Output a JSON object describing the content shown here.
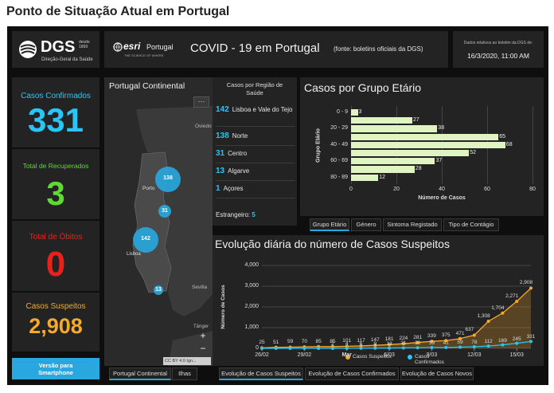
{
  "page_title": "Ponto de Situação Atual em Portugal",
  "header": {
    "dgs_brand": "DGS",
    "dgs_since": "desde 1899",
    "dgs_subtitle": "Direção-Geral da Saúde",
    "esri_brand": "esri",
    "esri_country": "Portugal",
    "esri_tagline": "THE SCIENCE OF WHERE",
    "title": "COVID - 19 em Portugal",
    "source": "(fonte: boletins oficiais da DGS)",
    "date_caption": "Dados relativos ao boletim da DGS de:",
    "date_value": "16/3/2020, 11:00 AM"
  },
  "stats": {
    "confirmed_label": "Casos Confirmados",
    "confirmed_value": "331",
    "recovered_label": "Total de Recuperados",
    "recovered_value": "3",
    "deaths_label": "Total de Óbitos",
    "deaths_value": "0",
    "suspected_label": "Casos Suspeitos",
    "suspected_value": "2,908",
    "smartphone_button": "Versão para Smartphone",
    "colors": {
      "confirmed": "#29c5f6",
      "recovered": "#5fd934",
      "deaths": "#e8211b",
      "suspected": "#f7a928"
    }
  },
  "map": {
    "title": "Portugal Continental",
    "menu": "···",
    "labels": {
      "oviedo": "Oviedo",
      "porto": "Porto",
      "sevilla": "Sevilla",
      "lisboa": "Lisboa",
      "tangier": "Tânger"
    },
    "bubbles": [
      {
        "label": "138",
        "value": 138
      },
      {
        "label": "31",
        "value": 31
      },
      {
        "label": "142",
        "value": 142
      },
      {
        "label": "13",
        "value": 13
      }
    ],
    "zoom_in": "+",
    "zoom_out": "−",
    "attribution": "CC BY 4.0 Ign...",
    "tabs": [
      "Portugal Continental",
      "Ilhas"
    ]
  },
  "regions": {
    "title": "Casos por Região de Saúde",
    "items": [
      {
        "num": "142",
        "name": "Lisboa e Vale do Tejo"
      },
      {
        "num": "138",
        "name": "Norte"
      },
      {
        "num": "31",
        "name": "Centro"
      },
      {
        "num": "13",
        "name": "Algarve"
      },
      {
        "num": "1",
        "name": "Açores"
      }
    ],
    "foreign_label": "Estrangeiro:",
    "foreign_value": "5"
  },
  "age_chart_panel": {
    "title": "Casos por Grupo Etário",
    "tabs": [
      "Grupo Etário",
      "Género",
      "Sintoma Registado",
      "Tipo de Contágio"
    ]
  },
  "daily_panel": {
    "title": "Evolução diária do número de Casos Suspeitos",
    "tabs": [
      "Evolução de Casos Suspeitos",
      "Evolução de Casos Confirmados",
      "Evolução de Casos Novos"
    ]
  },
  "chart_data": [
    {
      "type": "bar",
      "orientation": "horizontal",
      "categories": [
        "0 - 9",
        "10 - 19",
        "20 - 29",
        "30 - 39",
        "40 - 49",
        "50 - 59",
        "60 - 69",
        "70 - 79",
        "80 - 89"
      ],
      "tick_categories": [
        "0 - 9",
        "20 - 29",
        "40 - 49",
        "60 - 69",
        "80 - 89"
      ],
      "values": [
        3,
        27,
        38,
        65,
        68,
        52,
        37,
        28,
        12
      ],
      "xlabel": "Número de Casos",
      "ylabel": "Grupo Etário",
      "xlim": [
        0,
        80
      ],
      "xticks": [
        "0",
        "20",
        "40",
        "60",
        "80"
      ],
      "grid": true,
      "color": "#dff3c3"
    },
    {
      "type": "line",
      "x": [
        "26/02",
        "27/02",
        "28/02",
        "29/02",
        "01/03",
        "02/03",
        "03/03",
        "04/03",
        "05/03",
        "06/03",
        "07/03",
        "08/03",
        "09/03",
        "10/03",
        "11/03",
        "12/03",
        "13/03",
        "14/03",
        "15/03",
        "16/03"
      ],
      "xtick_labels": [
        "26/02",
        "29/02",
        "Mar",
        "6/03",
        "9/03",
        "12/03",
        "15/03"
      ],
      "series": [
        {
          "name": "Casos Suspeitos",
          "color": "#f7a928",
          "values": [
            25,
            51,
            59,
            70,
            85,
            85,
            101,
            117,
            147,
            181,
            224,
            281,
            339,
            375,
            471,
            637,
            1308,
            1704,
            2271,
            2908
          ],
          "labels": [
            "25",
            "51",
            "59",
            "70",
            "85",
            "85",
            "101",
            "117",
            "147",
            "181",
            "224",
            "281",
            "339",
            "375",
            "471",
            "637",
            "1,308",
            "1,704",
            "2,271",
            "2,908"
          ]
        },
        {
          "name": "Casos Confirmados",
          "color": "#29c5f6",
          "values": [
            0,
            0,
            0,
            0,
            0,
            2,
            4,
            6,
            9,
            13,
            21,
            30,
            39,
            41,
            59,
            78,
            112,
            169,
            245,
            331
          ],
          "labels": [
            "",
            "",
            "",
            "",
            "",
            "2",
            "4",
            "6",
            "9",
            "13",
            "21",
            "30",
            "39",
            "41",
            "59",
            "78",
            "112",
            "169",
            "245",
            "331"
          ]
        }
      ],
      "ylabel": "Número de Casos",
      "ylim": [
        0,
        4000
      ],
      "yticks": [
        "0",
        "1,000",
        "2,000",
        "3,000",
        "4,000"
      ],
      "legend": "bottom",
      "grid": true
    }
  ]
}
